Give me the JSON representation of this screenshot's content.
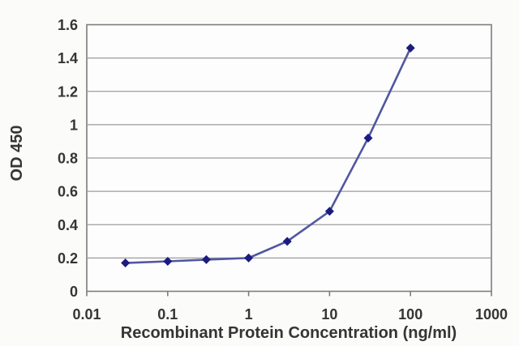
{
  "chart_data": {
    "type": "line",
    "title": "",
    "xlabel": "Recombinant Protein Concentration (ng/ml)",
    "ylabel": "OD 450",
    "x_scale": "log",
    "x": [
      0.03,
      0.1,
      0.3,
      1,
      3,
      10,
      30,
      100
    ],
    "y": [
      0.17,
      0.18,
      0.19,
      0.2,
      0.3,
      0.48,
      0.92,
      1.46
    ],
    "xlim": [
      0.01,
      1000
    ],
    "ylim": [
      0,
      1.6
    ],
    "x_ticks": [
      0.01,
      0.1,
      1,
      10,
      100,
      1000
    ],
    "x_tick_labels": [
      "0.01",
      "0.1",
      "1",
      "10",
      "100",
      "1000"
    ],
    "y_ticks": [
      0,
      0.2,
      0.4,
      0.6,
      0.8,
      1,
      1.2,
      1.4,
      1.6
    ],
    "y_tick_labels": [
      "0",
      "0.2",
      "0.4",
      "0.6",
      "0.8",
      "1",
      "1.2",
      "1.4",
      "1.6"
    ],
    "grid": true,
    "legend": "none",
    "marker": "diamond",
    "colors": {
      "line": "#5156a2",
      "marker": "#1b1b80",
      "grid": "#9c9c9c",
      "frame": "#7d7d7d",
      "text": "#353535",
      "plot_bg": "#fdfdfd"
    }
  }
}
